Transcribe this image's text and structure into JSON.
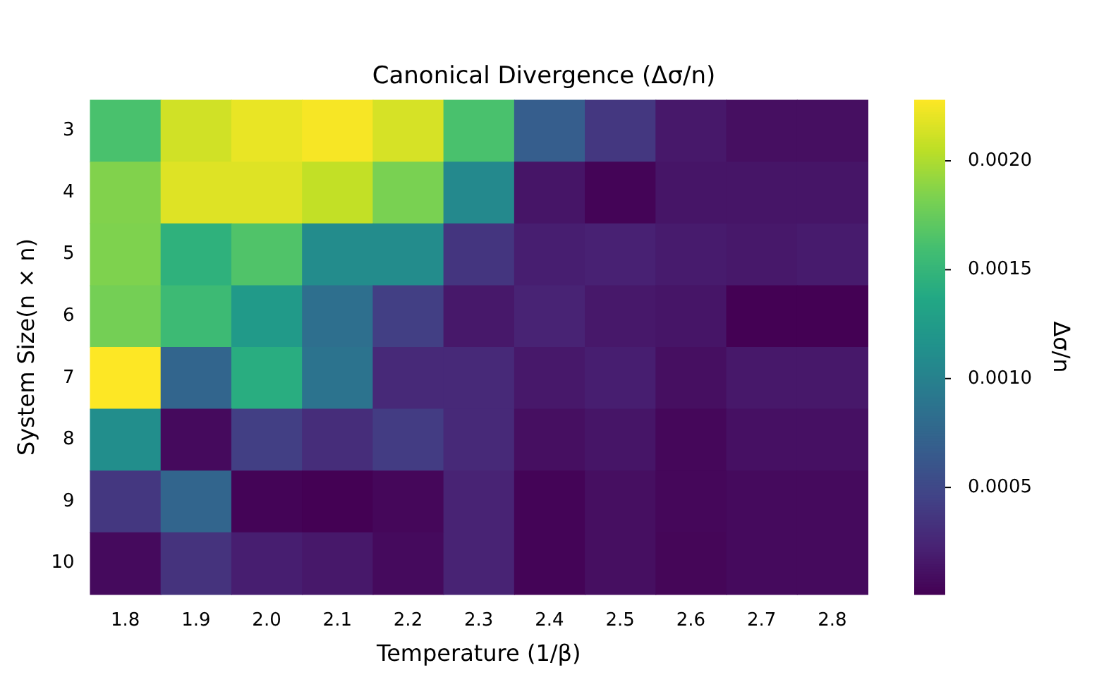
{
  "chart_data": {
    "type": "heatmap",
    "title": "Canonical Divergence (Δσ/n)",
    "xlabel": "Temperature (1/β)",
    "ylabel": "System Size(n × n)",
    "clabel": "Δσ/n",
    "categories": [
      "1.8",
      "1.9",
      "2.0",
      "2.1",
      "2.2",
      "2.3",
      "2.4",
      "2.5",
      "2.6",
      "2.7",
      "2.8"
    ],
    "y_categories": [
      "3",
      "4",
      "5",
      "6",
      "7",
      "8",
      "9",
      "10"
    ],
    "cells": [
      [
        0.00162,
        0.00212,
        0.00221,
        0.00226,
        0.00214,
        0.00162,
        0.00068,
        0.00037,
        0.00016,
        0.0001,
        0.0001
      ],
      [
        0.00185,
        0.00217,
        0.00217,
        0.00207,
        0.00182,
        0.00107,
        0.00014,
        3e-05,
        0.00014,
        0.00014,
        0.00014
      ],
      [
        0.00184,
        0.00146,
        0.00165,
        0.0011,
        0.0011,
        0.00036,
        0.0002,
        0.00022,
        0.00018,
        0.00016,
        0.00018
      ],
      [
        0.0018,
        0.00155,
        0.00123,
        0.00084,
        0.00043,
        0.00016,
        0.00023,
        0.00016,
        0.00014,
        1e-05,
        1e-05
      ],
      [
        0.00228,
        0.00075,
        0.00142,
        0.00087,
        0.00027,
        0.00027,
        0.00016,
        0.0002,
        0.0001,
        0.00016,
        0.00016
      ],
      [
        0.00112,
        7e-05,
        0.00043,
        0.0003,
        0.00041,
        0.00027,
        0.0001,
        0.00014,
        5e-05,
        0.00011,
        0.00011
      ],
      [
        0.00037,
        0.00075,
        3e-05,
        1e-05,
        5e-05,
        0.00023,
        3e-05,
        0.0001,
        5e-05,
        7e-05,
        7e-05
      ],
      [
        7e-05,
        0.00034,
        0.0002,
        0.00016,
        7e-05,
        0.00023,
        3e-05,
        0.0001,
        4e-05,
        7e-05,
        7e-05
      ]
    ],
    "clim": [
      1e-05,
      0.00228
    ],
    "cticks": [
      0.0005,
      {
        "value": 0.001,
        "label": "0.0010"
      },
      0.0015,
      {
        "value": 0.002,
        "label": "0.0020"
      }
    ]
  }
}
